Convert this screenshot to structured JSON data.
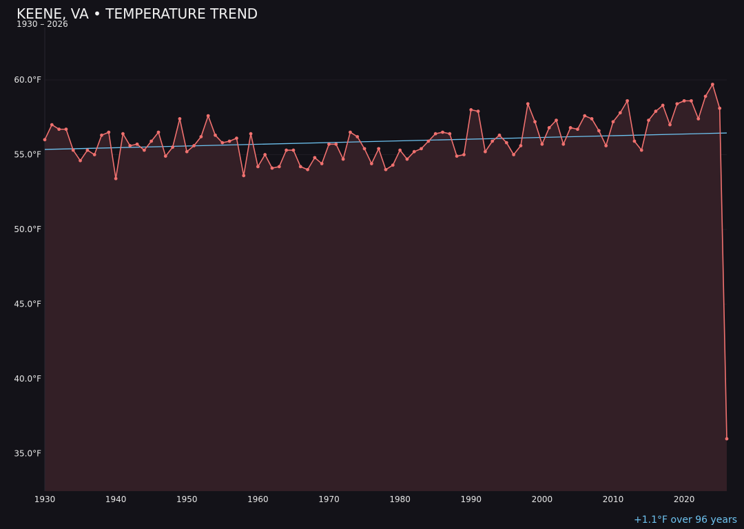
{
  "header": {
    "title": "KEENE, VA • TEMPERATURE TREND",
    "subtitle": "1930 – 2026"
  },
  "footer": {
    "trend_note": "+1.1°F over 96 years"
  },
  "colors": {
    "background": "#131218",
    "series_line": "#f0716f",
    "series_fill": "#331f26",
    "trend_line": "#6ec3f0",
    "grid": "#1f1c24",
    "axis_text": "#e6e6e6"
  },
  "chart_data": {
    "type": "line",
    "title": "KEENE, VA • TEMPERATURE TREND",
    "subtitle": "1930 – 2026",
    "xlabel": "",
    "ylabel": "",
    "xlim": [
      1930,
      2026
    ],
    "ylim": [
      32.5,
      63.5
    ],
    "grid": true,
    "legend": "none",
    "x_ticks": [
      1930,
      1940,
      1950,
      1960,
      1970,
      1980,
      1990,
      2000,
      2010,
      2020
    ],
    "y_ticks": [
      35.0,
      40.0,
      45.0,
      50.0,
      55.0,
      60.0
    ],
    "y_tick_labels": [
      "35.0°F",
      "40.0°F",
      "45.0°F",
      "50.0°F",
      "55.0°F",
      "60.0°F"
    ],
    "series": [
      {
        "type": "area-line",
        "x": [
          1930,
          1931,
          1932,
          1933,
          1934,
          1935,
          1936,
          1937,
          1938,
          1939,
          1940,
          1941,
          1942,
          1943,
          1944,
          1945,
          1946,
          1947,
          1948,
          1949,
          1950,
          1951,
          1952,
          1953,
          1954,
          1955,
          1956,
          1957,
          1958,
          1959,
          1960,
          1961,
          1962,
          1963,
          1964,
          1965,
          1966,
          1967,
          1968,
          1969,
          1970,
          1971,
          1972,
          1973,
          1974,
          1975,
          1976,
          1977,
          1978,
          1979,
          1980,
          1981,
          1982,
          1983,
          1984,
          1985,
          1986,
          1987,
          1988,
          1989,
          1990,
          1991,
          1992,
          1993,
          1994,
          1995,
          1996,
          1997,
          1998,
          1999,
          2000,
          2001,
          2002,
          2003,
          2004,
          2005,
          2006,
          2007,
          2008,
          2009,
          2010,
          2011,
          2012,
          2013,
          2014,
          2015,
          2016,
          2017,
          2018,
          2019,
          2020,
          2021,
          2022,
          2023,
          2024,
          2025,
          2026
        ],
        "values": [
          56.0,
          57.0,
          56.7,
          56.7,
          55.3,
          54.6,
          55.3,
          55.0,
          56.3,
          56.5,
          53.4,
          56.4,
          55.6,
          55.7,
          55.3,
          55.9,
          56.5,
          54.9,
          55.5,
          57.4,
          55.2,
          55.6,
          56.2,
          57.6,
          56.3,
          55.8,
          55.9,
          56.1,
          53.6,
          56.4,
          54.2,
          55.0,
          54.1,
          54.2,
          55.3,
          55.3,
          54.2,
          54.0,
          54.8,
          54.4,
          55.7,
          55.7,
          54.7,
          56.5,
          56.2,
          55.4,
          54.4,
          55.4,
          54.0,
          54.3,
          55.3,
          54.7,
          55.2,
          55.4,
          55.9,
          56.4,
          56.5,
          56.4,
          54.9,
          55.0,
          58.0,
          57.9,
          55.2,
          55.9,
          56.3,
          55.8,
          55.0,
          55.6,
          58.4,
          57.2,
          55.7,
          56.8,
          57.3,
          55.7,
          56.8,
          56.7,
          57.6,
          57.4,
          56.6,
          55.6,
          57.2,
          57.8,
          58.6,
          55.9,
          55.3,
          57.3,
          57.9,
          58.3,
          57.0,
          58.4,
          58.6,
          58.6,
          57.4,
          58.9,
          59.7,
          58.1,
          36.0
        ]
      },
      {
        "type": "trend",
        "name": "",
        "x": [
          1930,
          2026
        ],
        "values": [
          55.35,
          56.45
        ]
      }
    ]
  }
}
